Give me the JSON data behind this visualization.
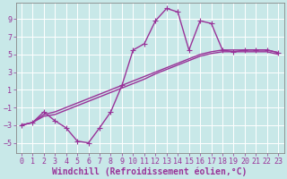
{
  "background_color": "#c8e8e8",
  "grid_color": "#ffffff",
  "line_color": "#993399",
  "markersize": 2.5,
  "linewidth": 1.0,
  "xlabel": "Windchill (Refroidissement éolien,°C)",
  "xlabel_fontsize": 7,
  "tick_fontsize": 6,
  "xlim": [
    -0.5,
    23.5
  ],
  "ylim": [
    -6.2,
    10.8
  ],
  "yticks": [
    -5,
    -3,
    -1,
    1,
    3,
    5,
    7,
    9
  ],
  "xticks": [
    0,
    1,
    2,
    3,
    4,
    5,
    6,
    7,
    8,
    9,
    10,
    11,
    12,
    13,
    14,
    15,
    16,
    17,
    18,
    19,
    20,
    21,
    22,
    23
  ],
  "curve_arch_x": [
    0,
    1,
    2,
    3,
    4,
    5,
    6,
    7,
    8,
    9,
    10,
    11,
    12,
    13,
    14,
    15,
    16,
    17,
    18,
    19,
    20,
    21,
    22,
    23
  ],
  "curve_arch_y": [
    -3.0,
    -2.7,
    -1.5,
    -2.5,
    -3.3,
    -4.8,
    -5.0,
    -3.3,
    -1.5,
    1.5,
    5.5,
    6.2,
    8.8,
    10.2,
    9.8,
    5.5,
    8.8,
    8.5,
    5.5,
    5.3,
    5.5,
    5.5,
    5.5,
    5.2
  ],
  "curve_line1_x": [
    0,
    1,
    2,
    3,
    4,
    5,
    6,
    7,
    8,
    9,
    10,
    11,
    12,
    13,
    14,
    15,
    16,
    17,
    18,
    19,
    20,
    21,
    22,
    23
  ],
  "curve_line1_y": [
    -3.0,
    -2.7,
    -1.8,
    -1.5,
    -1.0,
    -0.5,
    0.0,
    0.5,
    1.0,
    1.5,
    2.0,
    2.5,
    3.0,
    3.5,
    4.0,
    4.5,
    5.0,
    5.3,
    5.5,
    5.5,
    5.5,
    5.5,
    5.5,
    5.2
  ],
  "curve_line2_x": [
    0,
    1,
    2,
    3,
    4,
    5,
    6,
    7,
    8,
    9,
    10,
    11,
    12,
    13,
    14,
    15,
    16,
    17,
    18,
    19,
    20,
    21,
    22,
    23
  ],
  "curve_line2_y": [
    -3.0,
    -2.7,
    -2.0,
    -1.8,
    -1.3,
    -0.8,
    -0.3,
    0.2,
    0.7,
    1.2,
    1.7,
    2.2,
    2.8,
    3.3,
    3.8,
    4.3,
    4.8,
    5.1,
    5.3,
    5.3,
    5.3,
    5.3,
    5.3,
    5.0
  ]
}
